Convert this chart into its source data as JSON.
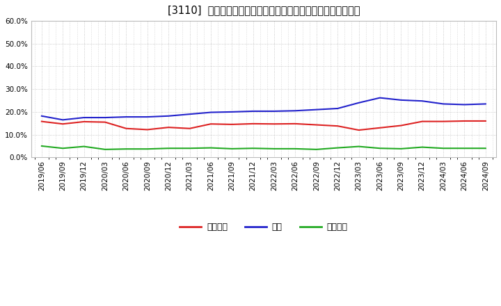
{
  "title": "[3110]  売上債権、在庫、買入債務の総資産に対する比率の推移",
  "x_labels": [
    "2019/06",
    "2019/09",
    "2019/12",
    "2020/03",
    "2020/06",
    "2020/09",
    "2020/12",
    "2021/03",
    "2021/06",
    "2021/09",
    "2021/12",
    "2022/03",
    "2022/06",
    "2022/09",
    "2022/12",
    "2023/03",
    "2023/06",
    "2023/09",
    "2023/12",
    "2024/03",
    "2024/06",
    "2024/09"
  ],
  "urikake": [
    0.158,
    0.147,
    0.157,
    0.155,
    0.127,
    0.122,
    0.132,
    0.127,
    0.147,
    0.145,
    0.148,
    0.147,
    0.148,
    0.143,
    0.138,
    0.12,
    0.13,
    0.14,
    0.158,
    0.158,
    0.16,
    0.16
  ],
  "zaiko": [
    0.182,
    0.165,
    0.175,
    0.175,
    0.178,
    0.178,
    0.182,
    0.19,
    0.198,
    0.2,
    0.203,
    0.203,
    0.205,
    0.21,
    0.215,
    0.24,
    0.262,
    0.252,
    0.248,
    0.235,
    0.232,
    0.235
  ],
  "kaiire": [
    0.05,
    0.04,
    0.048,
    0.035,
    0.037,
    0.037,
    0.04,
    0.04,
    0.042,
    0.038,
    0.04,
    0.038,
    0.038,
    0.035,
    0.042,
    0.048,
    0.04,
    0.038,
    0.045,
    0.04,
    0.04,
    0.04
  ],
  "urikake_color": "#dd2222",
  "zaiko_color": "#2222cc",
  "kaiire_color": "#22aa22",
  "background_color": "#ffffff",
  "grid_color": "#bbbbbb",
  "ylim": [
    0.0,
    0.6
  ],
  "yticks": [
    0.0,
    0.1,
    0.2,
    0.3,
    0.4,
    0.5,
    0.6
  ],
  "legend_labels": [
    "売上債権",
    "在庫",
    "買入債務"
  ],
  "title_fontsize": 10.5,
  "tick_fontsize": 7.5,
  "legend_fontsize": 9
}
